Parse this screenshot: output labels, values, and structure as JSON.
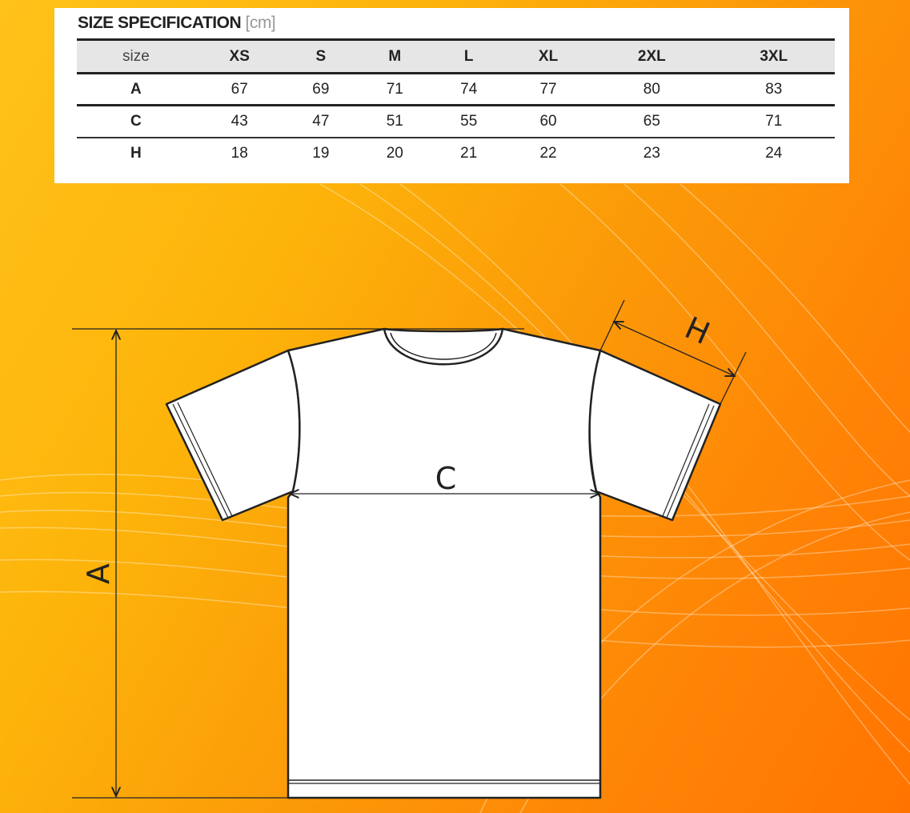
{
  "title": "SIZE SPECIFICATION",
  "unit": "[cm]",
  "table": {
    "header": [
      "size",
      "XS",
      "S",
      "M",
      "L",
      "XL",
      "2XL",
      "3XL"
    ],
    "rows": [
      {
        "label": "A",
        "values": [
          "67",
          "69",
          "71",
          "74",
          "77",
          "80",
          "83"
        ]
      },
      {
        "label": "C",
        "values": [
          "43",
          "47",
          "51",
          "55",
          "60",
          "65",
          "71"
        ]
      },
      {
        "label": "H",
        "values": [
          "18",
          "19",
          "20",
          "21",
          "22",
          "23",
          "24"
        ]
      }
    ]
  },
  "dimensions": {
    "length": "A",
    "chest": "C",
    "sleeve": "H"
  },
  "colors": {
    "background_light": "#ffc21a",
    "background_dark": "#ff7400",
    "header_row": "#e6e6e6"
  }
}
